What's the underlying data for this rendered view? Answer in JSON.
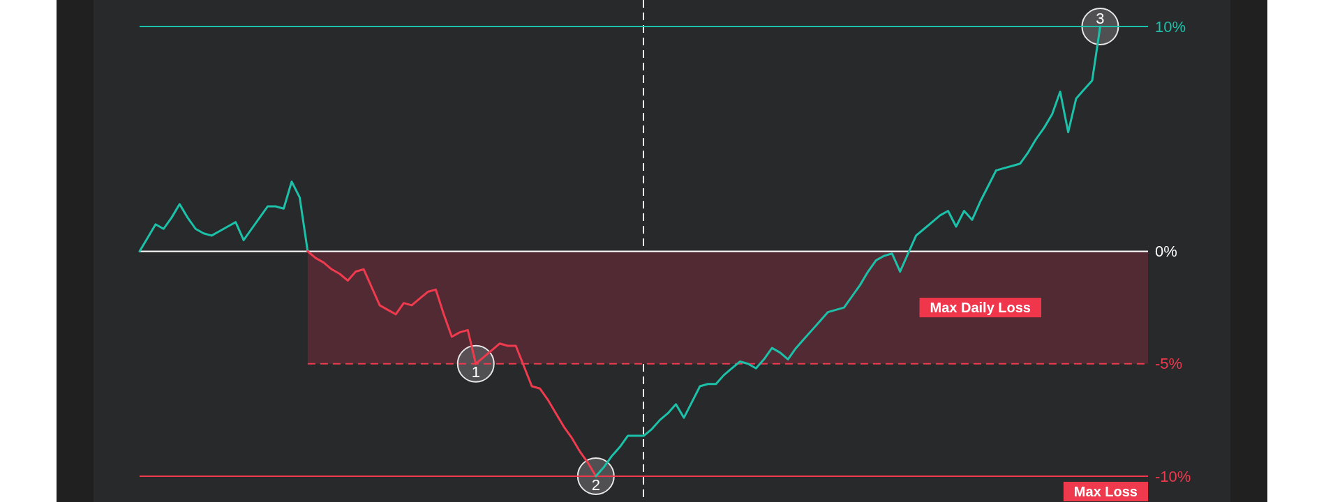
{
  "chart_data": {
    "type": "line",
    "categories": [
      null,
      null,
      null,
      null,
      null,
      null,
      null,
      null,
      null,
      null,
      null,
      null,
      null,
      null,
      null,
      null,
      null,
      null,
      null,
      null,
      null,
      null,
      null,
      null,
      null,
      null,
      null,
      null,
      null,
      null,
      null,
      null,
      null,
      null,
      null,
      null,
      null,
      null,
      null,
      null,
      null,
      null,
      null,
      null,
      null,
      null,
      null,
      null,
      null,
      null,
      null,
      null,
      null,
      null,
      null,
      null,
      null,
      null,
      null,
      null,
      null,
      null,
      null,
      null,
      null,
      null,
      null,
      null,
      null,
      null,
      null,
      null,
      null,
      null,
      null,
      null,
      null,
      null,
      null,
      null,
      null,
      null,
      null,
      null,
      null,
      null,
      null,
      null,
      null,
      null,
      null,
      null,
      null,
      null,
      null,
      null,
      null,
      null,
      null,
      null,
      null,
      null,
      null,
      null,
      null,
      null,
      null,
      null,
      null,
      null,
      null,
      null,
      null,
      null,
      null,
      null,
      null,
      null,
      null,
      null,
      null
    ],
    "series": [
      {
        "color": "#1cc1a9",
        "values": [
          0,
          0.6,
          1.2,
          1.0,
          1.5,
          2.1,
          1.5,
          1.0,
          0.8,
          0.7,
          0.9,
          1.1,
          1.3,
          0.5,
          1.0,
          1.5,
          2.0,
          2.0,
          1.9,
          3.1,
          2.4,
          0,
          null,
          null,
          null,
          null,
          null,
          null,
          null,
          null,
          null,
          null,
          null,
          null,
          null,
          null,
          null,
          null,
          null,
          null,
          null,
          null,
          null,
          null,
          null,
          null,
          null,
          null,
          null,
          null,
          null,
          null,
          null,
          null,
          null,
          null,
          null,
          null,
          null,
          null,
          null,
          null,
          null,
          null,
          null,
          null,
          null,
          null,
          null,
          null,
          null,
          null,
          null,
          null,
          null,
          null,
          null,
          null,
          null,
          null,
          null,
          null,
          null,
          null,
          null,
          null,
          null,
          null,
          null,
          null,
          null,
          null,
          null,
          null,
          null,
          null,
          null,
          null,
          null,
          null,
          null,
          null,
          null,
          null,
          null,
          null,
          null,
          null,
          null,
          null,
          null,
          null,
          null,
          null,
          null,
          null,
          null,
          null,
          null,
          null,
          null
        ]
      },
      {
        "color": "#f03b4f",
        "values": [
          null,
          null,
          null,
          null,
          null,
          null,
          null,
          null,
          null,
          null,
          null,
          null,
          null,
          null,
          null,
          null,
          null,
          null,
          null,
          null,
          null,
          0,
          -0.3,
          -0.5,
          -0.8,
          -1.0,
          -1.3,
          -0.9,
          -0.8,
          -1.6,
          -2.4,
          -2.6,
          -2.8,
          -2.3,
          -2.4,
          -2.1,
          -1.8,
          -1.7,
          -2.8,
          -3.8,
          -3.6,
          -3.5,
          -5,
          -4.7,
          -4.4,
          -4.1,
          -4.2,
          -4.2,
          -5.1,
          -6.0,
          -6.1,
          -6.6,
          -7.2,
          -7.8,
          -8.3,
          -8.9,
          -9.4,
          -10,
          null,
          null,
          null,
          null,
          null,
          null,
          null,
          null,
          null,
          null,
          null,
          null,
          null,
          null,
          null,
          null,
          null,
          null,
          null,
          null,
          null,
          null,
          null,
          null,
          null,
          null,
          null,
          null,
          null,
          null,
          null,
          null,
          null,
          null,
          null,
          null,
          null,
          null,
          null,
          null,
          null,
          null,
          null,
          null,
          null,
          null,
          null,
          null,
          null,
          null,
          null,
          null,
          null,
          null,
          null,
          null,
          null,
          null,
          null,
          null,
          null,
          null,
          null
        ]
      },
      {
        "color": "#1cc1a9",
        "values": [
          null,
          null,
          null,
          null,
          null,
          null,
          null,
          null,
          null,
          null,
          null,
          null,
          null,
          null,
          null,
          null,
          null,
          null,
          null,
          null,
          null,
          null,
          null,
          null,
          null,
          null,
          null,
          null,
          null,
          null,
          null,
          null,
          null,
          null,
          null,
          null,
          null,
          null,
          null,
          null,
          null,
          null,
          null,
          null,
          null,
          null,
          null,
          null,
          null,
          null,
          null,
          null,
          null,
          null,
          null,
          null,
          null,
          -10,
          -9.6,
          -9.1,
          -8.7,
          -8.2,
          -8.2,
          -8.2,
          -7.9,
          -7.5,
          -7.2,
          -6.8,
          -7.4,
          -6.7,
          -6.0,
          -5.9,
          -5.9,
          -5.5,
          -5.2,
          -4.9,
          -5.0,
          -5.2,
          -4.8,
          -4.3,
          -4.5,
          -4.8,
          -4.3,
          -3.9,
          -3.5,
          -3.1,
          -2.7,
          -2.6,
          -2.5,
          -2.0,
          -1.5,
          -0.9,
          -0.4,
          -0.2,
          -0.1,
          -0.9,
          -0.1,
          0.7,
          1.0,
          1.3,
          1.6,
          1.8,
          1.1,
          1.8,
          1.4,
          2.2,
          2.9,
          3.6,
          3.7,
          3.8,
          3.9,
          4.4,
          5.0,
          5.5,
          6.1,
          7.1,
          5.3,
          6.8,
          7.2,
          7.6,
          10
        ]
      }
    ],
    "ylim": [
      -10,
      10
    ],
    "yticks": [
      {
        "value": -10,
        "label": "-10%"
      },
      {
        "value": -5,
        "label": "-5%"
      },
      {
        "value": 0,
        "label": "0%"
      },
      {
        "value": 10,
        "label": "10%"
      }
    ],
    "ref_lines": [
      {
        "axis": "y",
        "value": 10,
        "color": "#1cc1a9"
      },
      {
        "axis": "y",
        "value": 0,
        "color": "#ffffff"
      },
      {
        "axis": "y",
        "value": -5,
        "color": "#ef3a4d",
        "line_style": "dashed"
      },
      {
        "axis": "y",
        "value": -10,
        "color": "#ef3a4d",
        "label": "Max Loss"
      }
    ],
    "bands": [
      {
        "axis": "y",
        "from": -5,
        "to": 0,
        "label": "Max Daily Loss",
        "color": "#522a33"
      }
    ],
    "annotations": [
      {
        "text": "1",
        "y": -5
      },
      {
        "text": "2",
        "y": -10
      },
      {
        "text": "3",
        "y": 10
      }
    ]
  }
}
